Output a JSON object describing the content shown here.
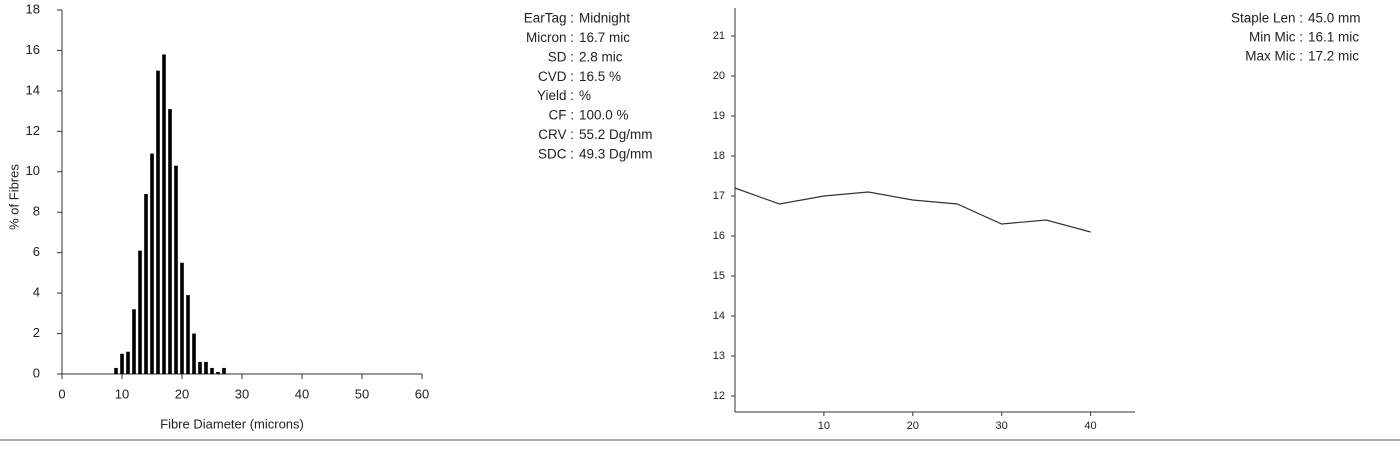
{
  "chart_data": [
    {
      "type": "histogram",
      "xlabel": "Fibre Diameter (microns)",
      "ylabel": "% of Fibres",
      "bins": [
        8.5,
        9.5,
        10.5,
        11.5,
        12.5,
        13.5,
        14.5,
        15.5,
        16.5,
        17.5,
        18.5,
        19.5,
        20.5,
        21.5,
        22.5,
        23.5,
        24.5,
        25.5,
        26.5,
        27.5
      ],
      "values": [
        0.3,
        1.0,
        1.1,
        3.2,
        6.1,
        8.9,
        10.9,
        15.0,
        15.8,
        13.1,
        10.3,
        5.5,
        3.9,
        2.0,
        0.6,
        0.6,
        0.3,
        0.1,
        0.3
      ],
      "color": "#000000",
      "xlim": [
        0,
        60
      ],
      "ylim": [
        0,
        18
      ],
      "xticks": [
        0,
        10,
        20,
        30,
        40,
        50,
        60
      ],
      "yticks": [
        0,
        2,
        4,
        6,
        8,
        10,
        12,
        14,
        16,
        18
      ]
    },
    {
      "type": "line",
      "x": [
        0,
        5,
        10,
        15,
        20,
        25,
        30,
        35,
        40
      ],
      "values": [
        17.2,
        16.8,
        17.0,
        17.1,
        16.9,
        16.8,
        16.3,
        16.4,
        16.1
      ],
      "color": "#333333",
      "xlim": [
        0,
        45
      ],
      "ylim": [
        11.6,
        21.7
      ],
      "xticks": [
        10,
        20,
        30,
        40
      ],
      "yticks": [
        12,
        13,
        14,
        15,
        16,
        17,
        18,
        19,
        20,
        21
      ]
    }
  ],
  "stats": [
    {
      "label": "EarTag :",
      "value": "Midnight"
    },
    {
      "label": "Micron :",
      "value": "16.7 mic"
    },
    {
      "label": "SD :",
      "value": "2.8 mic"
    },
    {
      "label": "CVD :",
      "value": "16.5 %"
    },
    {
      "label": "Yield :",
      "value": "%"
    },
    {
      "label": "CF :",
      "value": "100.0 %"
    },
    {
      "label": "CRV :",
      "value": "55.2 Dg/mm"
    },
    {
      "label": "SDC :",
      "value": "49.3 Dg/mm"
    }
  ],
  "profile_stats": [
    {
      "label": "Staple Len :",
      "value": "45.0 mm"
    },
    {
      "label": "Min Mic :",
      "value": "16.1 mic"
    },
    {
      "label": "Max Mic :",
      "value": "17.2 mic"
    }
  ]
}
